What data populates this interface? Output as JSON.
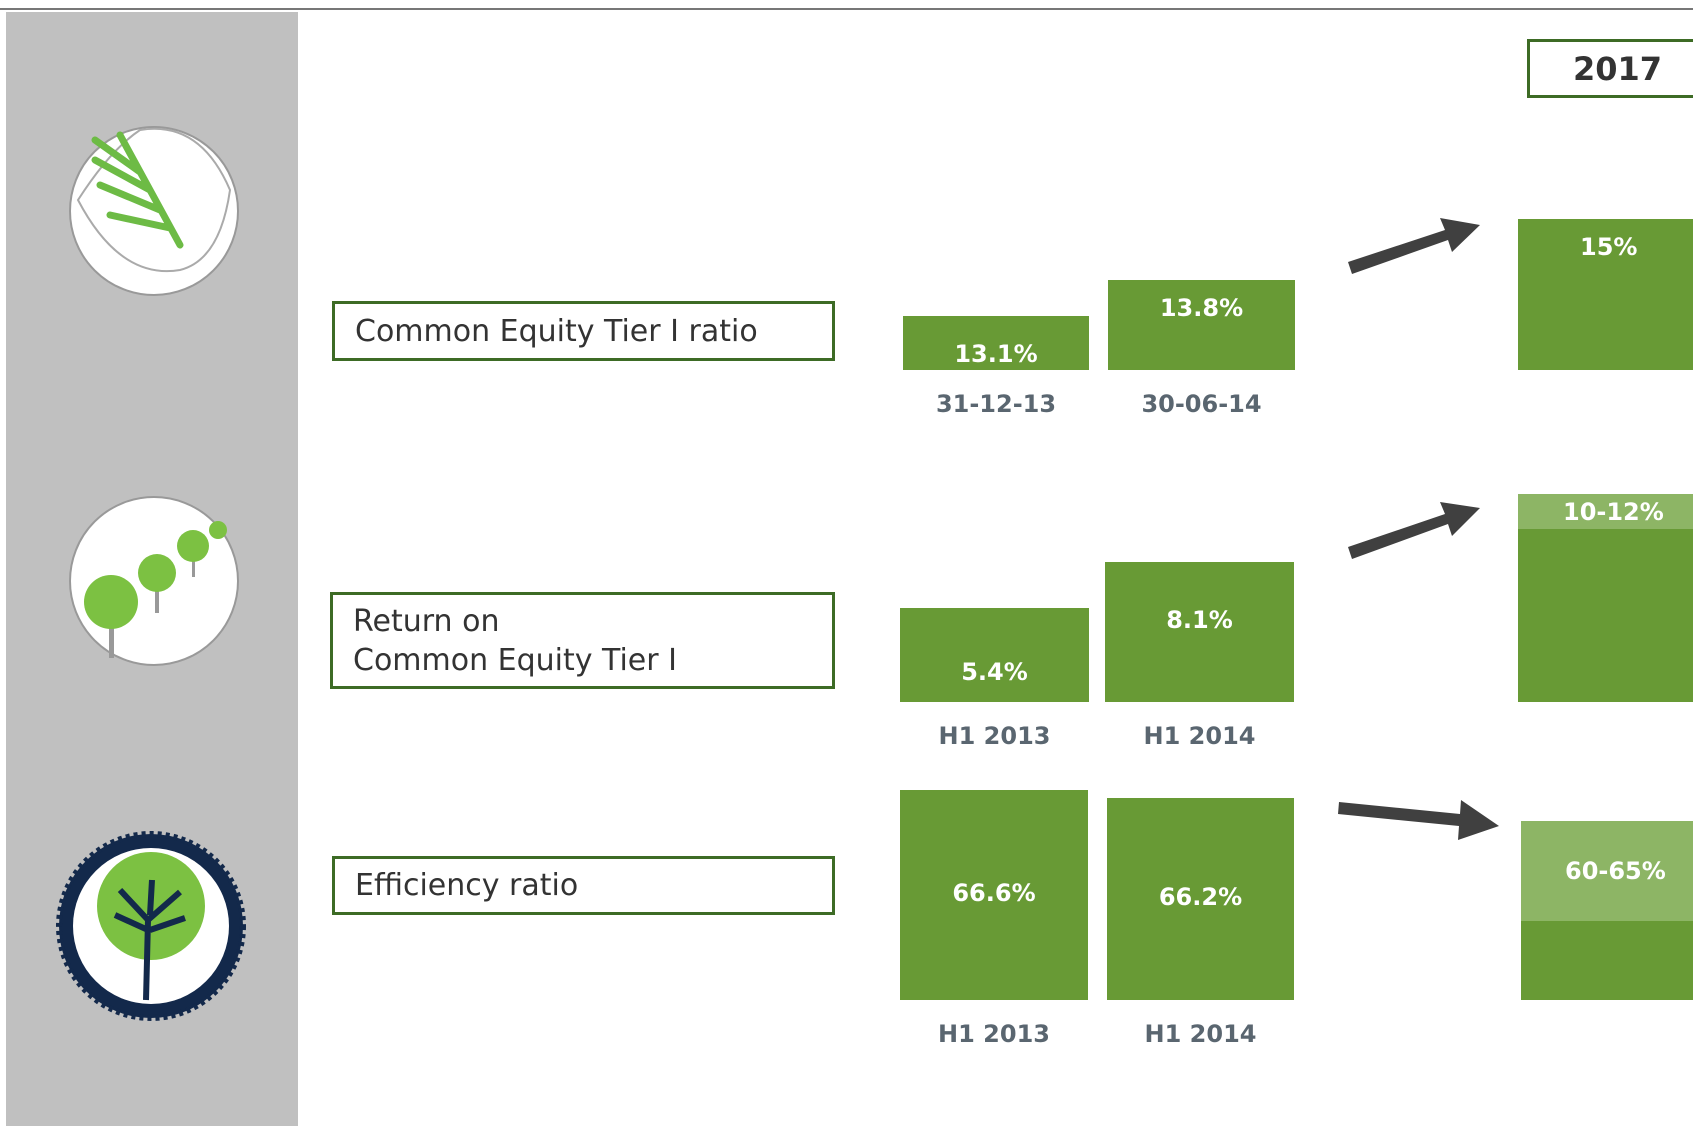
{
  "header": {
    "year": "2017"
  },
  "rows": [
    {
      "label": [
        "Common Equity Tier I ratio"
      ],
      "bars": [
        {
          "value": "13.1%",
          "period": "31-12-13"
        },
        {
          "value": "13.8%",
          "period": "30-06-14"
        }
      ],
      "target": "15%"
    },
    {
      "label": [
        "Return on",
        "Common Equity Tier I"
      ],
      "bars": [
        {
          "value": "5.4%",
          "period": "H1 2013"
        },
        {
          "value": "8.1%",
          "period": "H1 2014"
        }
      ],
      "target": "10-12%"
    },
    {
      "label": [
        "Efficiency ratio"
      ],
      "bars": [
        {
          "value": "66.6%",
          "period": "H1 2013"
        },
        {
          "value": "66.2%",
          "period": "H1 2014"
        }
      ],
      "target": "60-65%"
    }
  ]
}
